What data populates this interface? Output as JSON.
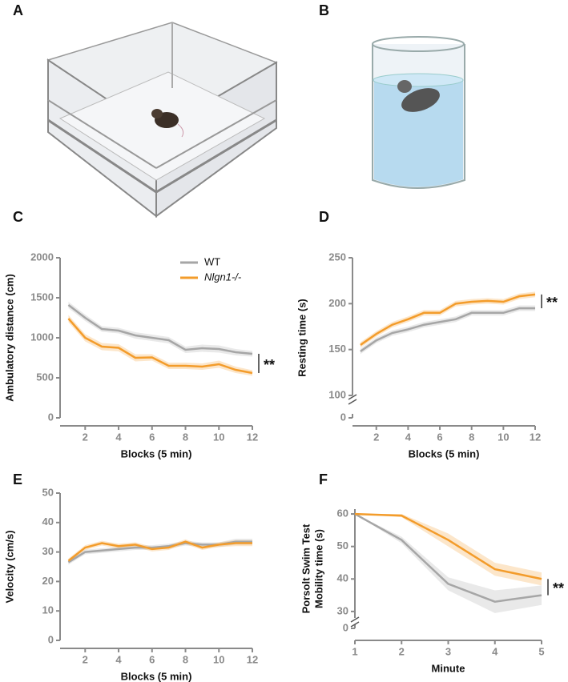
{
  "illustrations": [
    {
      "panel": "A"
    },
    {
      "panel": "B"
    }
  ],
  "chart_data": [
    {
      "type": "line",
      "panel": "C",
      "xlabel": "Blocks (5 min)",
      "ylabel": "Ambulatory distance (cm)",
      "x": [
        1,
        2,
        3,
        4,
        5,
        6,
        7,
        8,
        9,
        10,
        11,
        12
      ],
      "xlim": [
        0.5,
        12
      ],
      "xticks": [
        2,
        4,
        6,
        8,
        10,
        12
      ],
      "ylim": [
        0,
        2000
      ],
      "yticks": [
        0,
        500,
        1000,
        1500,
        2000
      ],
      "legend": "top-right",
      "annotation": "**",
      "series": [
        {
          "name": "WT",
          "color": "#a6a6a6",
          "values": [
            1410,
            1250,
            1110,
            1090,
            1030,
            1000,
            970,
            850,
            870,
            860,
            820,
            800
          ],
          "errors": [
            40,
            40,
            35,
            35,
            40,
            40,
            40,
            40,
            45,
            45,
            40,
            35
          ]
        },
        {
          "name": "Nlgn1-/-",
          "color": "#f39c2b",
          "values": [
            1240,
            1000,
            890,
            875,
            750,
            755,
            650,
            650,
            640,
            670,
            600,
            560
          ],
          "errors": [
            45,
            45,
            45,
            45,
            45,
            40,
            40,
            40,
            40,
            45,
            40,
            35
          ]
        }
      ]
    },
    {
      "type": "line",
      "panel": "D",
      "xlabel": "Blocks (5 min)",
      "ylabel": "Resting time (s)",
      "x": [
        1,
        2,
        3,
        4,
        5,
        6,
        7,
        8,
        9,
        10,
        11,
        12
      ],
      "xlim": [
        0.5,
        12
      ],
      "xticks": [
        2,
        4,
        6,
        8,
        10,
        12
      ],
      "ylim": [
        100,
        250
      ],
      "yticks": [
        100,
        150,
        200,
        250
      ],
      "break_tick": 0,
      "annotation": "**",
      "series": [
        {
          "name": "WT",
          "color": "#a6a6a6",
          "values": [
            148,
            160,
            168,
            172,
            177,
            180,
            183,
            190,
            190,
            190,
            195,
            195
          ],
          "errors": [
            3,
            3,
            3,
            3,
            3,
            3,
            3,
            3,
            3,
            3,
            3,
            3
          ]
        },
        {
          "name": "Nlgn1-/-",
          "color": "#f39c2b",
          "values": [
            155,
            167,
            177,
            183,
            190,
            190,
            200,
            202,
            203,
            202,
            208,
            210
          ],
          "errors": [
            3,
            3,
            3,
            3,
            3,
            3,
            3,
            3,
            3,
            3,
            3,
            3
          ]
        }
      ]
    },
    {
      "type": "line",
      "panel": "E",
      "xlabel": "Blocks (5 min)",
      "ylabel": "Velocity (cm/s)",
      "x": [
        1,
        2,
        3,
        4,
        5,
        6,
        7,
        8,
        9,
        10,
        11,
        12
      ],
      "xlim": [
        0.5,
        12
      ],
      "xticks": [
        2,
        4,
        6,
        8,
        10,
        12
      ],
      "ylim": [
        0,
        50
      ],
      "yticks": [
        0,
        10,
        20,
        30,
        40,
        50
      ],
      "series": [
        {
          "name": "WT",
          "color": "#a6a6a6",
          "values": [
            26.5,
            30,
            30.5,
            31,
            31.5,
            31.5,
            32,
            33,
            32.5,
            32.5,
            33.5,
            33.5
          ],
          "errors": [
            0.8,
            0.8,
            0.8,
            0.8,
            0.8,
            0.8,
            0.8,
            0.8,
            0.8,
            0.8,
            1,
            1
          ]
        },
        {
          "name": "Nlgn1-/-",
          "color": "#f39c2b",
          "values": [
            27,
            31.5,
            33,
            32,
            32.5,
            31,
            31.5,
            33.5,
            31.5,
            32.5,
            33,
            33
          ],
          "errors": [
            0.8,
            0.8,
            0.8,
            0.8,
            0.8,
            0.8,
            0.8,
            0.8,
            0.8,
            0.8,
            1,
            1
          ]
        }
      ]
    },
    {
      "type": "line",
      "panel": "F",
      "xlabel": "Minute",
      "ylabel": [
        "Porsolt Swim Test",
        "Mobility time (s)"
      ],
      "x": [
        1,
        2,
        3,
        4,
        5
      ],
      "xlim": [
        1,
        5
      ],
      "xticks": [
        1,
        2,
        3,
        4,
        5
      ],
      "ylim": [
        28,
        61.5
      ],
      "yticks": [
        30,
        40,
        50,
        60
      ],
      "break_tick": 0,
      "annotation": "**",
      "series": [
        {
          "name": "WT",
          "color": "#a6a6a6",
          "values": [
            60,
            52,
            38.5,
            33,
            35
          ],
          "errors": [
            0,
            1,
            2,
            3.5,
            3
          ]
        },
        {
          "name": "Nlgn1-/-",
          "color": "#f39c2b",
          "values": [
            60,
            59.5,
            52,
            43,
            40
          ],
          "errors": [
            0,
            0.5,
            2,
            2,
            2
          ]
        }
      ]
    }
  ]
}
